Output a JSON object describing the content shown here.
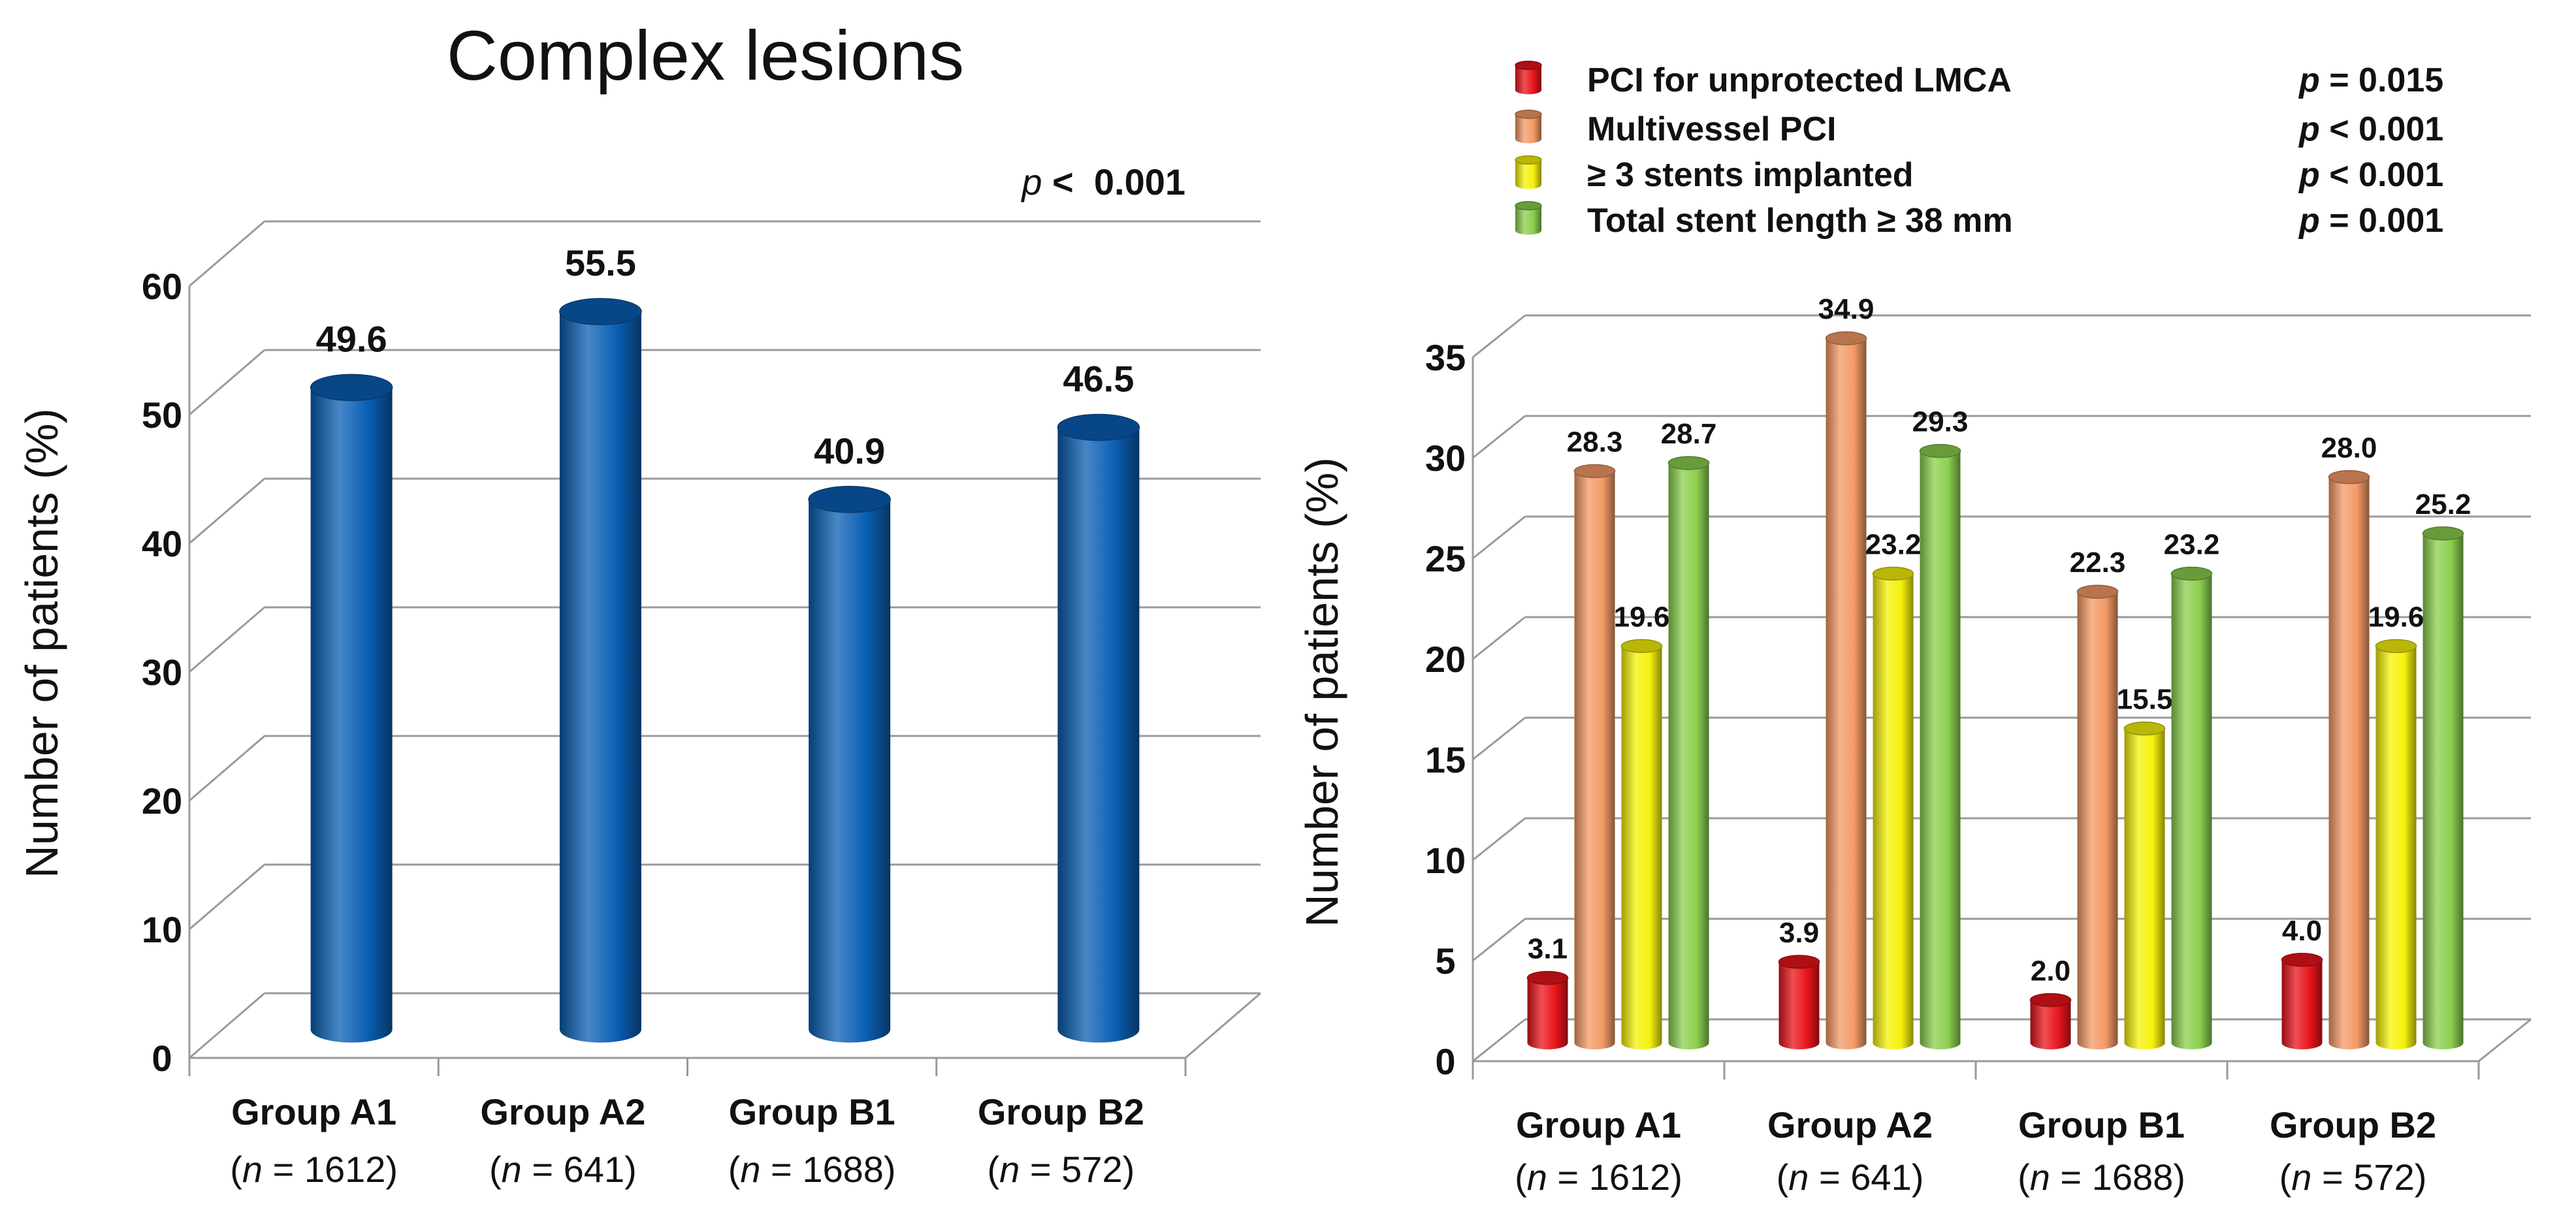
{
  "chart_data": [
    {
      "type": "bar",
      "title": "Complex lesions",
      "p_label": {
        "prefix": "p",
        "text": " <  0.001"
      },
      "ylabel": "Number of patients (%)",
      "ylim": [
        0,
        60
      ],
      "yticks": [
        "0",
        "10",
        "20",
        "30",
        "40",
        "50",
        "60"
      ],
      "categories": [
        {
          "name": "Group A1",
          "n_prefix": "(",
          "n_italic": "n",
          "n_suffix": " = 1612)"
        },
        {
          "name": "Group A2",
          "n_prefix": "(",
          "n_italic": "n",
          "n_suffix": " = 641)"
        },
        {
          "name": "Group B1",
          "n_prefix": "(",
          "n_italic": "n",
          "n_suffix": " = 1688)"
        },
        {
          "name": "Group B2",
          "n_prefix": "(",
          "n_italic": "n",
          "n_suffix": " = 572)"
        }
      ],
      "values": [
        49.6,
        55.5,
        40.9,
        46.5
      ],
      "labels": [
        "49.6",
        "55.5",
        "40.9",
        "46.5"
      ],
      "color": "#0a5fb4"
    },
    {
      "type": "bar",
      "ylabel": "Number of patients (%)",
      "ylim": [
        0,
        35
      ],
      "yticks": [
        "0",
        "5",
        "10",
        "15",
        "20",
        "25",
        "30",
        "35"
      ],
      "categories": [
        {
          "name": "Group A1",
          "n_prefix": "(",
          "n_italic": "n",
          "n_suffix": " = 1612)"
        },
        {
          "name": "Group A2",
          "n_prefix": "(",
          "n_italic": "n",
          "n_suffix": " = 641)"
        },
        {
          "name": "Group B1",
          "n_prefix": "(",
          "n_italic": "n",
          "n_suffix": " = 1688)"
        },
        {
          "name": "Group B2",
          "n_prefix": "(",
          "n_italic": "n",
          "n_suffix": " = 572)"
        }
      ],
      "series": [
        {
          "name": "PCI for unprotected LMCA",
          "p_prefix": "p",
          "p_text": " = 0.015",
          "color": "#e8141b",
          "values": [
            3.1,
            3.9,
            2.0,
            4.0
          ],
          "labels": [
            "3.1",
            "3.9",
            "2.0",
            "4.0"
          ]
        },
        {
          "name": "Multivessel PCI",
          "p_prefix": "p",
          "p_text": " < 0.001",
          "color": "#f49a66",
          "values": [
            28.3,
            34.9,
            22.3,
            28.0
          ],
          "labels": [
            "28.3",
            "34.9",
            "22.3",
            "28.0"
          ]
        },
        {
          "name": "≥ 3 stents implanted",
          "p_prefix": "p",
          "p_text": " < 0.001",
          "color": "#f6f20a",
          "values": [
            19.6,
            23.2,
            15.5,
            19.6
          ],
          "labels": [
            "19.6",
            "23.2",
            "15.5",
            "19.6"
          ]
        },
        {
          "name": "Total stent length ≥ 38 mm",
          "p_prefix": "p",
          "p_text": " = 0.001",
          "color": "#8ccf4f",
          "values": [
            28.7,
            29.3,
            23.2,
            25.2
          ],
          "labels": [
            "28.7",
            "29.3",
            "23.2",
            "25.2"
          ]
        }
      ],
      "legend_position": "top"
    }
  ]
}
